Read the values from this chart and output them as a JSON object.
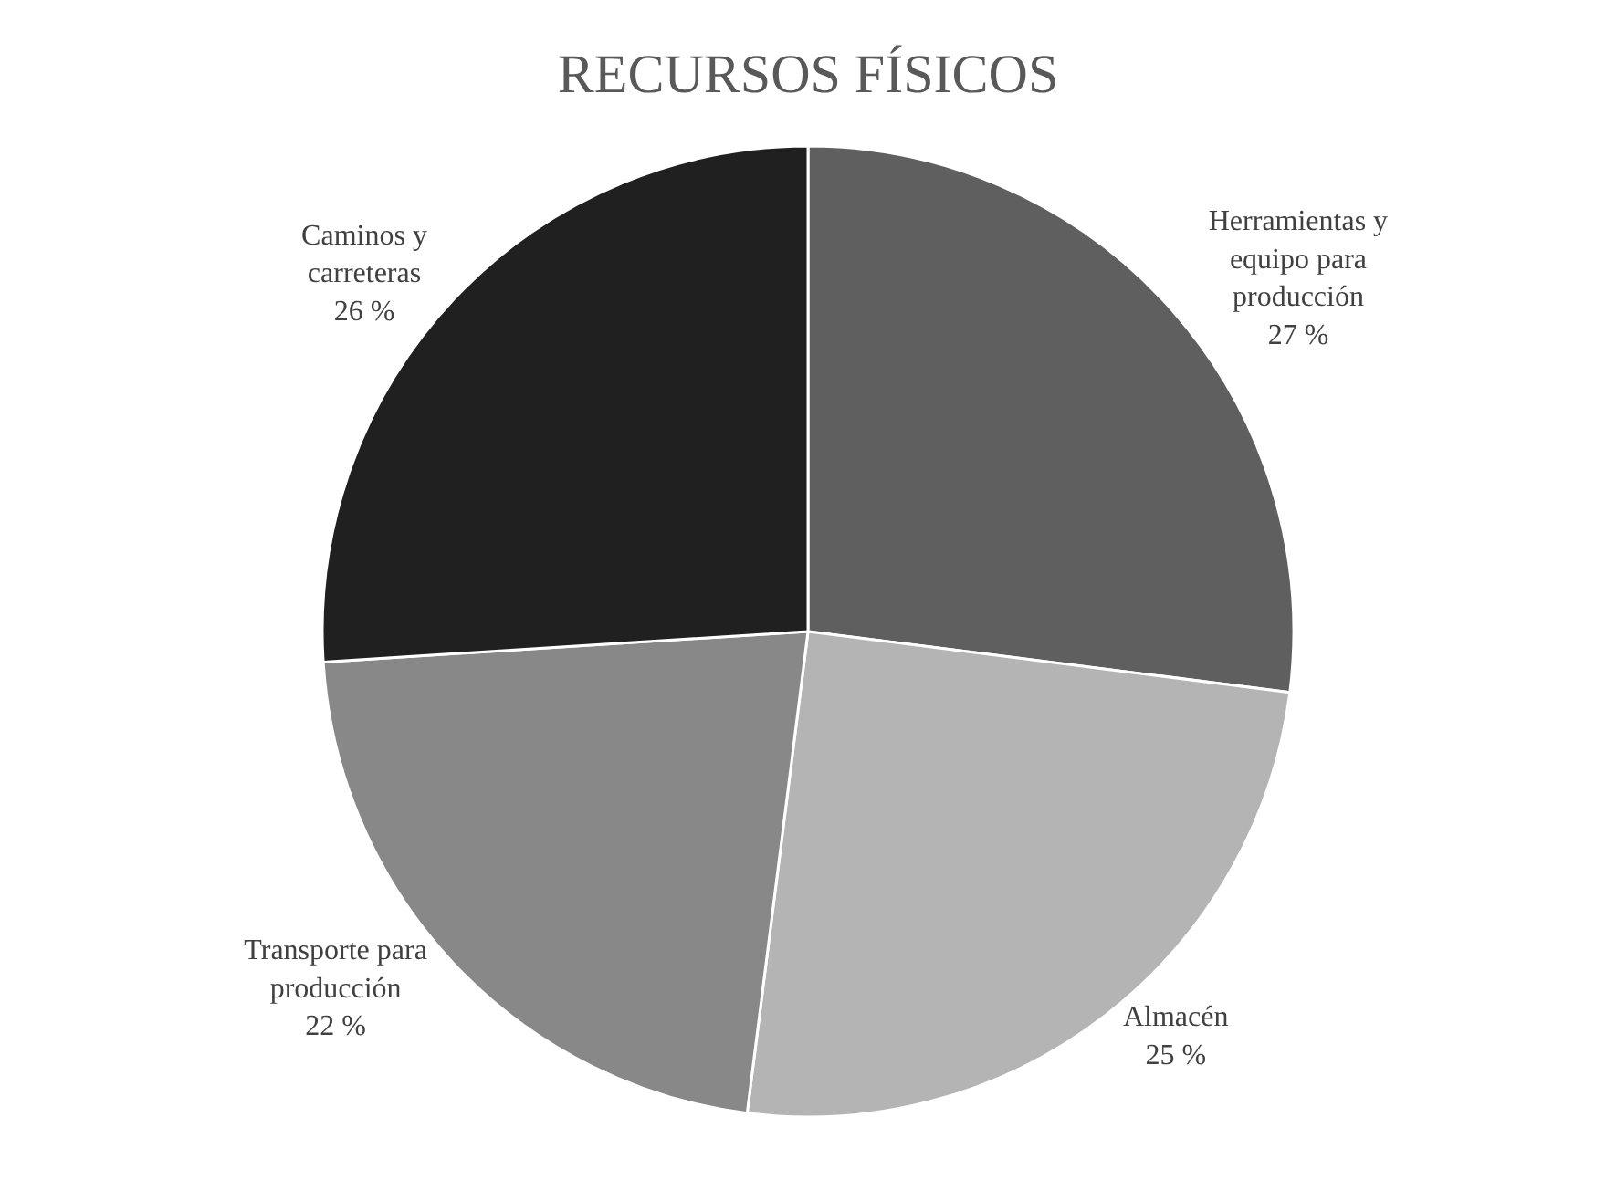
{
  "chart_data": {
    "type": "pie",
    "title": "RECURSOS FÍSICOS",
    "categories": [
      "Herramientas y\nequipo para\nproducción",
      "Almacén",
      "Transporte para\nproducción",
      "Caminos y\ncarreteras"
    ],
    "values": [
      27,
      25,
      22,
      26
    ],
    "value_labels": [
      "27 %",
      "25 %",
      "22 %",
      "26 %"
    ],
    "colors": [
      "#5f5f5f",
      "#b4b4b4",
      "#888888",
      "#202020"
    ],
    "legend": false
  }
}
